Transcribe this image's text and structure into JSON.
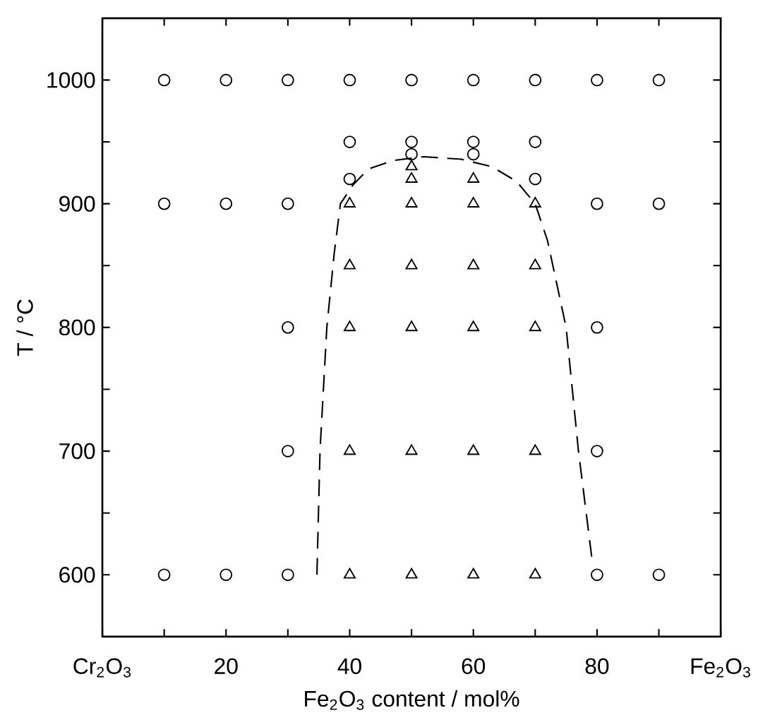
{
  "chart_data": {
    "type": "scatter",
    "xlabel": "Fe$_{2}$O$_{3}$ content / mol%",
    "ylabel": "T / °C",
    "xlim": [
      0,
      100
    ],
    "ylim": [
      550,
      1050
    ],
    "xticks": [
      {
        "value": 0,
        "label": "Cr$_{2}$O$_{3}$"
      },
      {
        "value": 10,
        "label": null
      },
      20,
      {
        "value": 30,
        "label": null
      },
      40,
      {
        "value": 50,
        "label": null
      },
      60,
      {
        "value": 70,
        "label": null
      },
      80,
      {
        "value": 90,
        "label": null
      },
      {
        "value": 100,
        "label": "Fe$_{2}$O$_{3}$"
      }
    ],
    "yticks": [
      600,
      {
        "value": 650,
        "label": null
      },
      700,
      {
        "value": 750,
        "label": null
      },
      800,
      {
        "value": 850,
        "label": null
      },
      900,
      {
        "value": 950,
        "label": null
      },
      1000
    ],
    "series": [
      {
        "marker": "circle",
        "color": "#000000",
        "x": [
          10,
          20,
          30,
          40,
          50,
          60,
          70,
          80,
          90,
          40,
          50,
          60,
          70,
          50,
          60,
          40,
          70,
          10,
          20,
          30,
          80,
          90,
          30,
          80,
          30,
          80,
          10,
          20,
          30,
          80,
          90
        ],
        "values": [
          1000,
          1000,
          1000,
          1000,
          1000,
          1000,
          1000,
          1000,
          1000,
          950,
          950,
          950,
          950,
          940,
          940,
          920,
          920,
          900,
          900,
          900,
          900,
          900,
          800,
          800,
          700,
          700,
          600,
          600,
          600,
          600,
          600
        ]
      },
      {
        "marker": "triangle",
        "color": "#000000",
        "x": [
          50,
          50,
          60,
          40,
          50,
          60,
          70,
          40,
          50,
          60,
          70,
          40,
          50,
          60,
          70,
          40,
          50,
          60,
          70,
          40,
          50,
          60,
          70
        ],
        "values": [
          930,
          920,
          920,
          900,
          900,
          900,
          900,
          850,
          850,
          850,
          850,
          800,
          800,
          800,
          800,
          700,
          700,
          700,
          700,
          600,
          600,
          600,
          600
        ]
      },
      {
        "type": "line",
        "marker": "none",
        "line_style": "dashed",
        "color": "#000000",
        "x": [
          34.7,
          35.2,
          36.3,
          37.5,
          38.5,
          40.5,
          43,
          47,
          52,
          58,
          63,
          67,
          70,
          72,
          75,
          77,
          79,
          79.3
        ],
        "values": [
          600,
          700,
          800,
          860,
          900,
          915,
          928,
          935,
          938,
          936,
          930,
          918,
          900,
          870,
          800,
          700,
          620,
          608
        ]
      }
    ]
  }
}
